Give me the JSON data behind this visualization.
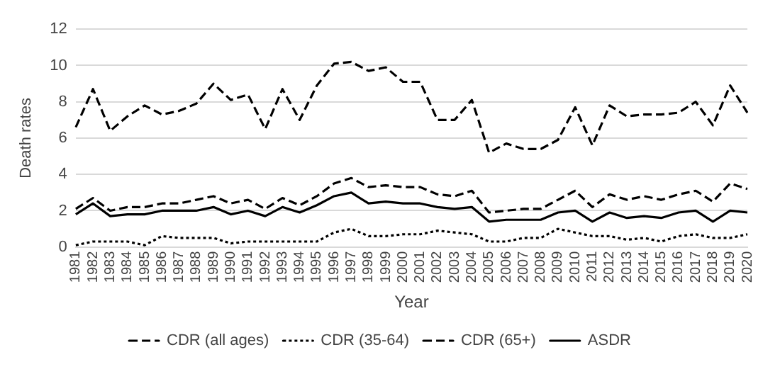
{
  "chart_data": {
    "type": "line",
    "xlabel": "Year",
    "ylabel": "Death rates",
    "categories": [
      "1981",
      "1982",
      "1983",
      "1984",
      "1985",
      "1986",
      "1987",
      "1988",
      "1989",
      "1990",
      "1991",
      "1992",
      "1993",
      "1994",
      "1995",
      "1996",
      "1997",
      "1998",
      "1999",
      "2000",
      "2001",
      "2002",
      "2003",
      "2004",
      "2005",
      "2006",
      "2007",
      "2008",
      "2009",
      "2010",
      "2011",
      "2012",
      "2013",
      "2014",
      "2015",
      "2016",
      "2017",
      "2018",
      "2019",
      "2020"
    ],
    "series": [
      {
        "name": "CDR (all ages)",
        "color": "#000000",
        "line_style": "dashed",
        "values": [
          2.1,
          2.7,
          2.0,
          2.2,
          2.2,
          2.4,
          2.4,
          2.6,
          2.8,
          2.4,
          2.6,
          2.1,
          2.7,
          2.3,
          2.8,
          3.5,
          3.8,
          3.3,
          3.4,
          3.3,
          3.3,
          2.9,
          2.8,
          3.1,
          1.9,
          2.0,
          2.1,
          2.1,
          2.6,
          3.1,
          2.2,
          2.9,
          2.6,
          2.8,
          2.6,
          2.9,
          3.1,
          2.5,
          3.5,
          3.2
        ]
      },
      {
        "name": "CDR (35-64)",
        "color": "#000000",
        "line_style": "dotted",
        "values": [
          0.1,
          0.3,
          0.3,
          0.3,
          0.1,
          0.6,
          0.5,
          0.5,
          0.5,
          0.2,
          0.3,
          0.3,
          0.3,
          0.3,
          0.3,
          0.8,
          1.0,
          0.6,
          0.6,
          0.7,
          0.7,
          0.9,
          0.8,
          0.7,
          0.3,
          0.3,
          0.5,
          0.5,
          1.0,
          0.8,
          0.6,
          0.6,
          0.4,
          0.5,
          0.3,
          0.6,
          0.7,
          0.5,
          0.5,
          0.7
        ]
      },
      {
        "name": "CDR (65+)",
        "color": "#000000",
        "line_style": "dashed",
        "values": [
          6.6,
          8.7,
          6.4,
          7.2,
          7.8,
          7.3,
          7.5,
          7.9,
          9.0,
          8.1,
          8.4,
          6.5,
          8.7,
          7.0,
          8.9,
          10.1,
          10.2,
          9.7,
          9.9,
          9.1,
          9.1,
          7.0,
          7.0,
          8.1,
          5.2,
          5.7,
          5.4,
          5.4,
          5.9,
          7.7,
          5.6,
          7.8,
          7.2,
          7.3,
          7.3,
          7.4,
          8.0,
          6.7,
          8.9,
          7.4
        ]
      },
      {
        "name": "ASDR",
        "color": "#000000",
        "line_style": "solid",
        "values": [
          1.8,
          2.4,
          1.7,
          1.8,
          1.8,
          2.0,
          2.0,
          2.0,
          2.2,
          1.8,
          2.0,
          1.7,
          2.2,
          1.9,
          2.3,
          2.8,
          3.0,
          2.4,
          2.5,
          2.4,
          2.4,
          2.2,
          2.1,
          2.2,
          1.4,
          1.5,
          1.5,
          1.5,
          1.9,
          2.0,
          1.4,
          1.9,
          1.6,
          1.7,
          1.6,
          1.9,
          2.0,
          1.4,
          2.0,
          1.9
        ]
      }
    ],
    "ylim": [
      0,
      12
    ],
    "yticks": [
      0,
      2,
      4,
      6,
      8,
      10,
      12
    ],
    "grid": "y",
    "legend": "bottom",
    "marker": "none"
  }
}
